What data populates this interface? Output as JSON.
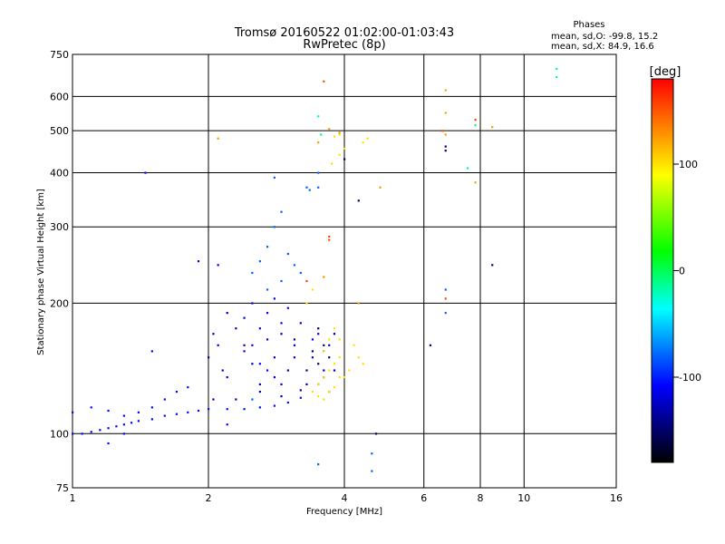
{
  "chart_data": {
    "type": "scatter",
    "title": "Tromsø 20160522 01:02:00-01:03:43",
    "subtitle": "RwPretec (8p)",
    "xlabel": "Frequency [MHz]",
    "ylabel": "Stationary phase Virtual Height [km]",
    "x_scale": "log",
    "y_scale": "log",
    "xlim": [
      1,
      16
    ],
    "ylim": [
      75,
      750
    ],
    "x_ticks": [
      1,
      2,
      4,
      6,
      8,
      10,
      16
    ],
    "y_ticks": [
      75,
      100,
      200,
      300,
      400,
      500,
      600,
      750
    ],
    "grid": true,
    "phases_box": {
      "title": "Phases",
      "line1": "mean, sd,O: -99.8, 15.2",
      "line2": "mean, sd,X:  84.9, 16.6"
    },
    "colorbar": {
      "label": "[deg]",
      "range": [
        -180,
        180
      ],
      "ticks": [
        100,
        0,
        -100
      ],
      "colors": [
        "#ff0000",
        "#ffff00",
        "#00ff00",
        "#00ffff",
        "#0000ff",
        "#000000"
      ]
    },
    "series": [
      {
        "phase": -105,
        "points": [
          [
            1.0,
            100
          ],
          [
            1.05,
            100
          ],
          [
            1.1,
            101
          ],
          [
            1.15,
            102
          ],
          [
            1.2,
            103
          ],
          [
            1.25,
            104
          ],
          [
            1.3,
            105
          ],
          [
            1.35,
            106
          ],
          [
            1.4,
            107
          ],
          [
            1.5,
            108
          ],
          [
            1.6,
            110
          ],
          [
            1.7,
            111
          ],
          [
            1.8,
            112
          ],
          [
            1.9,
            113
          ],
          [
            2.0,
            114
          ],
          [
            2.2,
            114
          ],
          [
            2.4,
            114
          ],
          [
            2.6,
            115
          ],
          [
            2.8,
            116
          ],
          [
            3.0,
            118
          ],
          [
            3.2,
            121
          ],
          [
            1.0,
            112
          ],
          [
            1.1,
            115
          ],
          [
            1.2,
            113
          ],
          [
            1.3,
            110
          ],
          [
            1.4,
            112
          ],
          [
            1.5,
            115
          ],
          [
            1.6,
            120
          ],
          [
            1.7,
            125
          ],
          [
            1.8,
            128
          ],
          [
            1.3,
            100
          ],
          [
            1.45,
            400
          ],
          [
            1.5,
            155
          ],
          [
            1.2,
            95
          ]
        ]
      },
      {
        "phase": -125,
        "points": [
          [
            2.0,
            150
          ],
          [
            2.05,
            170
          ],
          [
            2.1,
            160
          ],
          [
            2.15,
            140
          ],
          [
            2.2,
            190
          ],
          [
            2.3,
            175
          ],
          [
            2.4,
            160
          ],
          [
            2.5,
            145
          ],
          [
            2.6,
            130
          ],
          [
            2.7,
            165
          ],
          [
            2.8,
            150
          ],
          [
            2.9,
            170
          ],
          [
            3.0,
            140
          ],
          [
            3.1,
            160
          ],
          [
            3.2,
            180
          ],
          [
            3.3,
            130
          ],
          [
            3.4,
            150
          ],
          [
            3.5,
            170
          ],
          [
            3.6,
            140
          ],
          [
            3.7,
            160
          ],
          [
            2.05,
            120
          ],
          [
            2.3,
            120
          ],
          [
            2.6,
            125
          ],
          [
            2.9,
            122
          ],
          [
            3.2,
            126
          ],
          [
            3.5,
            130
          ],
          [
            3.8,
            140
          ]
        ]
      },
      {
        "phase": -110,
        "points": [
          [
            2.4,
            185
          ],
          [
            2.5,
            200
          ],
          [
            2.6,
            175
          ],
          [
            2.7,
            190
          ],
          [
            2.8,
            205
          ],
          [
            2.9,
            180
          ],
          [
            3.0,
            195
          ],
          [
            2.5,
            160
          ],
          [
            2.7,
            140
          ],
          [
            2.9,
            130
          ],
          [
            2.2,
            135
          ],
          [
            2.4,
            155
          ],
          [
            2.6,
            145
          ],
          [
            2.8,
            135
          ],
          [
            3.1,
            150
          ],
          [
            3.4,
            165
          ],
          [
            3.6,
            155
          ],
          [
            2.2,
            105
          ],
          [
            2.1,
            245
          ],
          [
            1.9,
            250
          ]
        ]
      },
      {
        "phase": -80,
        "points": [
          [
            2.5,
            235
          ],
          [
            2.6,
            250
          ],
          [
            2.7,
            270
          ],
          [
            2.8,
            300
          ],
          [
            2.9,
            325
          ],
          [
            3.0,
            260
          ],
          [
            3.1,
            245
          ],
          [
            3.2,
            235
          ],
          [
            2.7,
            215
          ],
          [
            2.9,
            225
          ],
          [
            2.8,
            390
          ],
          [
            3.3,
            370
          ],
          [
            3.35,
            365
          ],
          [
            3.5,
            400
          ],
          [
            3.5,
            370
          ],
          [
            2.5,
            120
          ],
          [
            3.5,
            85
          ],
          [
            4.6,
            82
          ],
          [
            4.6,
            90
          ],
          [
            6.7,
            190
          ],
          [
            6.7,
            215
          ]
        ]
      },
      {
        "phase": -150,
        "points": [
          [
            3.5,
            175
          ],
          [
            3.6,
            160
          ],
          [
            3.7,
            150
          ],
          [
            3.5,
            145
          ],
          [
            3.6,
            135
          ],
          [
            3.7,
            125
          ],
          [
            3.3,
            140
          ],
          [
            3.4,
            155
          ],
          [
            3.8,
            170
          ],
          [
            3.1,
            165
          ],
          [
            6.7,
            450
          ],
          [
            6.7,
            460
          ],
          [
            6.2,
            160
          ],
          [
            8.5,
            245
          ],
          [
            4.3,
            345
          ],
          [
            4.0,
            430
          ],
          [
            4.7,
            100
          ]
        ]
      },
      {
        "phase": 100,
        "points": [
          [
            3.4,
            125
          ],
          [
            3.5,
            130
          ],
          [
            3.6,
            135
          ],
          [
            3.7,
            140
          ],
          [
            3.8,
            145
          ],
          [
            3.9,
            135
          ],
          [
            3.7,
            125
          ],
          [
            3.6,
            120
          ],
          [
            3.5,
            122
          ],
          [
            3.8,
            128
          ],
          [
            3.6,
            155
          ],
          [
            3.7,
            165
          ],
          [
            3.8,
            175
          ],
          [
            3.9,
            150
          ],
          [
            3.3,
            200
          ],
          [
            3.4,
            215
          ],
          [
            3.6,
            230
          ],
          [
            3.75,
            420
          ],
          [
            3.9,
            440
          ],
          [
            4.0,
            455
          ],
          [
            3.8,
            485
          ],
          [
            3.9,
            490
          ],
          [
            4.4,
            470
          ],
          [
            4.5,
            480
          ],
          [
            4.2,
            160
          ],
          [
            4.3,
            150
          ],
          [
            4.4,
            145
          ],
          [
            4.1,
            140
          ],
          [
            4.0,
            135
          ],
          [
            3.9,
            165
          ]
        ]
      },
      {
        "phase": 125,
        "points": [
          [
            3.6,
            230
          ],
          [
            3.7,
            505
          ],
          [
            3.5,
            470
          ],
          [
            6.7,
            550
          ],
          [
            6.7,
            620
          ],
          [
            6.7,
            490
          ],
          [
            7.8,
            380
          ],
          [
            8.5,
            510
          ],
          [
            4.3,
            200
          ],
          [
            4.8,
            370
          ],
          [
            2.1,
            480
          ],
          [
            3.9,
            495
          ]
        ]
      },
      {
        "phase": 155,
        "points": [
          [
            3.7,
            285
          ],
          [
            3.7,
            280
          ],
          [
            3.6,
            650
          ],
          [
            3.3,
            225
          ],
          [
            7.8,
            530
          ],
          [
            6.7,
            205
          ],
          [
            6.6,
            500
          ]
        ]
      },
      {
        "phase": -10,
        "points": [
          [
            11.8,
            665
          ],
          [
            11.8,
            695
          ],
          [
            7.8,
            515
          ],
          [
            3.5,
            540
          ],
          [
            3.55,
            490
          ],
          [
            7.5,
            410
          ]
        ]
      }
    ]
  }
}
